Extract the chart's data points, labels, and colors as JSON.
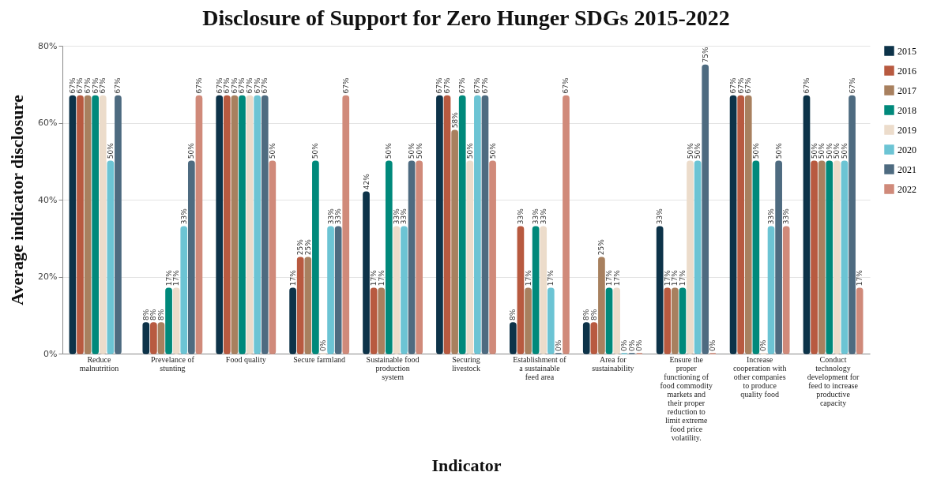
{
  "chart_data": {
    "type": "bar",
    "title": "Disclosure of Support for Zero Hunger SDGs 2015-2022",
    "xlabel": "Indicator",
    "ylabel": "Average indicator disclosure",
    "categories": [
      "Reduce malnutrition",
      "Prevelance of stunting",
      "Food quality",
      "Secure farmland",
      "Sustainable food production system",
      "Securing livestock",
      "Establishment of a sustainable feed area",
      "Area for sustainability",
      "Ensure the proper functioning of food commodity markets and their proper reduction to limit extreme food price volatility.",
      "Increase cooperation with other companies to produce quality food",
      "Conduct technology development for feed to increase productive capacity"
    ],
    "series": [
      {
        "name": "2015",
        "color": "#0d3349",
        "values": [
          67,
          8,
          67,
          17,
          42,
          67,
          8,
          8,
          33,
          67,
          67
        ],
        "value_labels": [
          "67%",
          "8%",
          "67%",
          "17%",
          "42%",
          "67%",
          "8%",
          "8%",
          "33%",
          "67%",
          "67%"
        ]
      },
      {
        "name": "2016",
        "color": "#b85a40",
        "values": [
          67,
          8,
          67,
          25,
          17,
          67,
          33,
          8,
          17,
          67,
          50
        ],
        "value_labels": [
          "67%",
          "8%",
          "67%",
          "25%",
          "17%",
          "67%",
          "33%",
          "8%",
          "17%",
          "67%",
          "50%"
        ]
      },
      {
        "name": "2017",
        "color": "#a8805f",
        "values": [
          67,
          8,
          67,
          25,
          17,
          58,
          17,
          25,
          17,
          67,
          50
        ],
        "value_labels": [
          "67%",
          "8%",
          "67%",
          "25%",
          "17%",
          "58%",
          "17%",
          "25%",
          "17%",
          "67%",
          "50%"
        ]
      },
      {
        "name": "2018",
        "color": "#00897b",
        "values": [
          67,
          17,
          67,
          50,
          50,
          67,
          33,
          17,
          17,
          50,
          50
        ],
        "value_labels": [
          "67%",
          "17%",
          "67%",
          "50%",
          "50%",
          "67%",
          "33%",
          "17%",
          "17%",
          "50%",
          "50%"
        ]
      },
      {
        "name": "2019",
        "color": "#ecdccb",
        "values": [
          67,
          17,
          67,
          0,
          33,
          50,
          33,
          17,
          50,
          0,
          50
        ],
        "value_labels": [
          "67%",
          "17%",
          "67%",
          "0%",
          "33%",
          "50%",
          "33%",
          "17%",
          "50%",
          "0%",
          "50%"
        ]
      },
      {
        "name": "2020",
        "color": "#6cc4d4",
        "values": [
          50,
          33,
          67,
          33,
          33,
          67,
          17,
          0,
          50,
          33,
          50
        ],
        "value_labels": [
          "50%",
          "33%",
          "67%",
          "33%",
          "33%",
          "67%",
          "17%",
          "0%",
          "50%",
          "33%",
          "50%"
        ]
      },
      {
        "name": "2021",
        "color": "#4e6b80",
        "values": [
          67,
          50,
          67,
          33,
          50,
          67,
          0,
          0,
          75,
          50,
          67
        ],
        "value_labels": [
          "67%",
          "50%",
          "67%",
          "33%",
          "50%",
          "67%",
          "0%",
          "0%",
          "75%",
          "50%",
          "67%"
        ]
      },
      {
        "name": "2022",
        "color": "#d08a7a",
        "values": [
          null,
          67,
          50,
          67,
          50,
          50,
          67,
          0,
          0,
          33,
          17
        ],
        "value_labels": [
          null,
          "67%",
          "50%",
          "67%",
          "50%",
          "50%",
          "67%",
          "0%",
          "0%",
          "33%",
          "17%"
        ]
      }
    ],
    "ylim": [
      0,
      80
    ],
    "yticks": [
      {
        "value": 0,
        "label": "0%"
      },
      {
        "value": 20,
        "label": "20%"
      },
      {
        "value": 40,
        "label": "40%"
      },
      {
        "value": 60,
        "label": "60%"
      },
      {
        "value": 80,
        "label": "80%"
      }
    ],
    "grid": "y",
    "legend": "right"
  }
}
